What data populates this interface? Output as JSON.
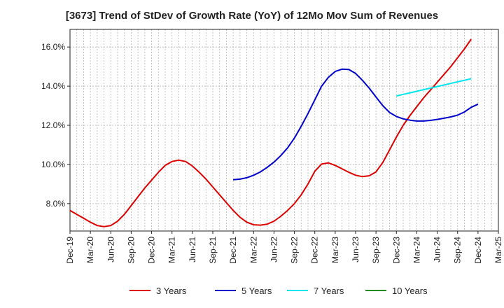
{
  "chart_data": {
    "type": "line",
    "title": "[3673]  Trend of StDev of Growth Rate (YoY) of 12Mo Mov Sum of Revenues",
    "xlabel": "",
    "ylabel": "",
    "ylim": [
      6.6,
      16.9
    ],
    "y_ticks": [
      8.0,
      10.0,
      12.0,
      14.0,
      16.0
    ],
    "y_tick_labels": [
      "8.0%",
      "10.0%",
      "12.0%",
      "14.0%",
      "16.0%"
    ],
    "x_tick_labels": [
      "Dec-19",
      "Mar-20",
      "Jun-20",
      "Sep-20",
      "Dec-20",
      "Mar-21",
      "Jun-21",
      "Sep-21",
      "Dec-21",
      "Mar-22",
      "Jun-22",
      "Sep-22",
      "Dec-22",
      "Mar-23",
      "Jun-23",
      "Sep-23",
      "Dec-23",
      "Mar-24",
      "Jun-24",
      "Sep-24",
      "Dec-24",
      "Mar-25"
    ],
    "x_range_months": [
      0,
      63
    ],
    "grid": true,
    "legend_position": "bottom",
    "series": [
      {
        "name": "3 Years",
        "color": "#dd0000",
        "start_month": 0,
        "values": [
          7.65,
          7.45,
          7.25,
          7.05,
          6.88,
          6.82,
          6.88,
          7.1,
          7.45,
          7.9,
          8.35,
          8.8,
          9.2,
          9.6,
          9.95,
          10.15,
          10.22,
          10.15,
          9.92,
          9.6,
          9.25,
          8.85,
          8.45,
          8.05,
          7.65,
          7.3,
          7.05,
          6.92,
          6.9,
          6.95,
          7.1,
          7.35,
          7.65,
          8.0,
          8.45,
          9.0,
          9.65,
          10.02,
          10.08,
          9.95,
          9.78,
          9.6,
          9.45,
          9.38,
          9.42,
          9.62,
          10.1,
          10.75,
          11.4,
          12.0,
          12.5,
          12.95,
          13.4,
          13.8,
          14.2,
          14.6,
          15.0,
          15.45,
          15.9,
          16.4
        ]
      },
      {
        "name": "5 Years",
        "color": "#0000cc",
        "start_month": 24,
        "values": [
          9.22,
          9.25,
          9.32,
          9.45,
          9.62,
          9.85,
          10.12,
          10.45,
          10.85,
          11.35,
          11.95,
          12.6,
          13.3,
          14.0,
          14.45,
          14.75,
          14.87,
          14.85,
          14.65,
          14.3,
          13.9,
          13.45,
          13.0,
          12.65,
          12.45,
          12.33,
          12.26,
          12.22,
          12.22,
          12.25,
          12.3,
          12.36,
          12.43,
          12.52,
          12.68,
          12.92,
          13.08
        ]
      },
      {
        "name": "7 Years",
        "color": "#00e5ee",
        "start_month": 48,
        "values": [
          13.5,
          13.58,
          13.66,
          13.74,
          13.82,
          13.9,
          13.98,
          14.06,
          14.14,
          14.22,
          14.3,
          14.38
        ]
      },
      {
        "name": "10 Years",
        "color": "#228b22",
        "start_month": 0,
        "values": []
      }
    ]
  }
}
